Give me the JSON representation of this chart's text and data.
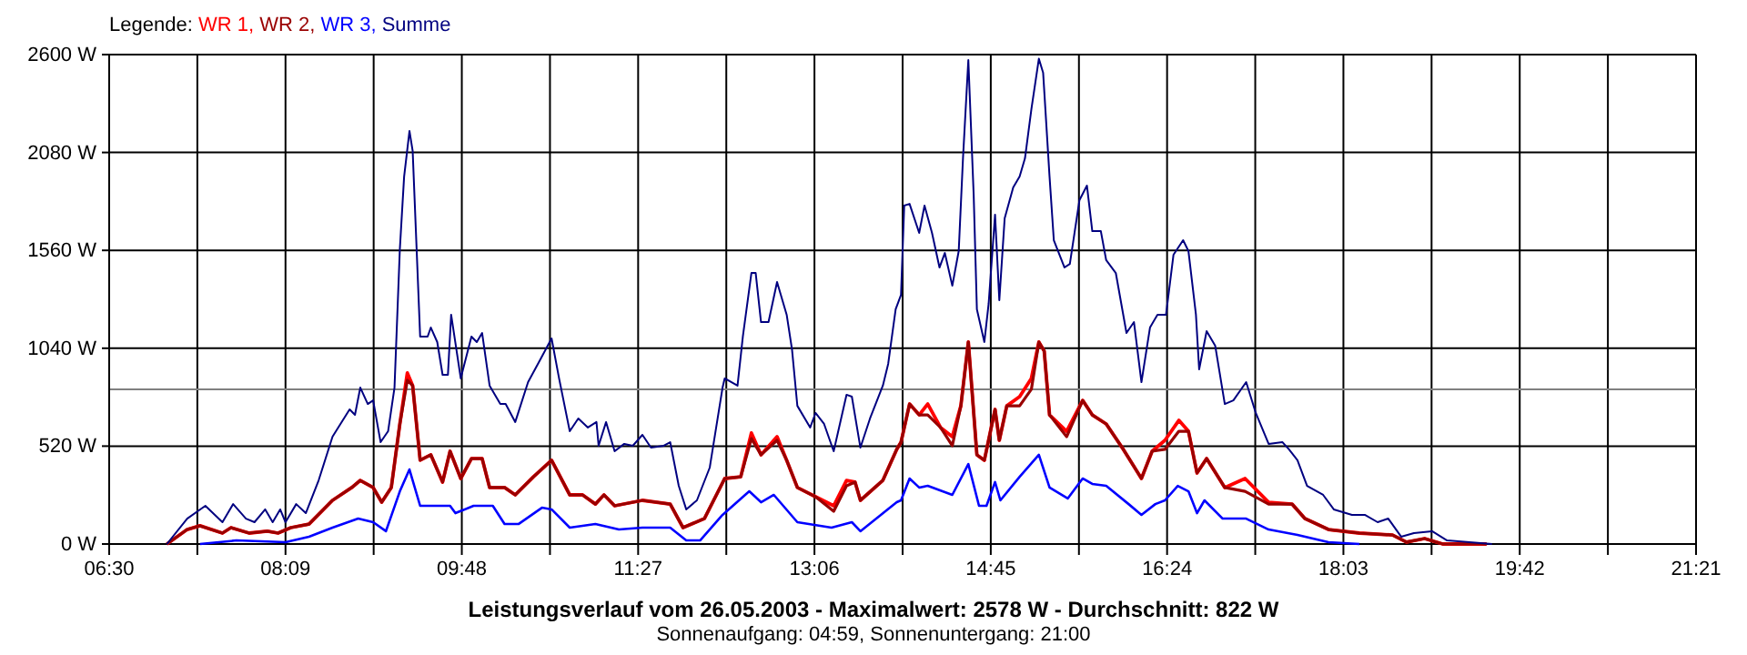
{
  "chart_data": {
    "type": "line",
    "title": "Leistungsverlauf vom 26.05.2003 - Maximalwert: 2578 W - Durchschnitt: 822 W",
    "subtitle": "Sonnenaufgang: 04:59, Sonnenuntergang: 21:00",
    "legend_title": "Legende:",
    "legend": "top left",
    "grid": true,
    "xlim": [
      6.5,
      21.35
    ],
    "xticks": [
      {
        "value": 6.5,
        "label": "06:30"
      },
      {
        "value": 7.325,
        "label": null
      },
      {
        "value": 8.15,
        "label": "08:09"
      },
      {
        "value": 8.975,
        "label": null
      },
      {
        "value": 9.8,
        "label": "09:48"
      },
      {
        "value": 10.625,
        "label": null
      },
      {
        "value": 11.45,
        "label": "11:27"
      },
      {
        "value": 12.275,
        "label": null
      },
      {
        "value": 13.1,
        "label": "13:06"
      },
      {
        "value": 13.925,
        "label": null
      },
      {
        "value": 14.75,
        "label": "14:45"
      },
      {
        "value": 15.575,
        "label": null
      },
      {
        "value": 16.4,
        "label": "16:24"
      },
      {
        "value": 17.225,
        "label": null
      },
      {
        "value": 18.05,
        "label": "18:03"
      },
      {
        "value": 18.875,
        "label": null
      },
      {
        "value": 19.7,
        "label": "19:42"
      },
      {
        "value": 20.525,
        "label": null
      },
      {
        "value": 21.35,
        "label": "21:21"
      }
    ],
    "ylim": [
      0,
      2600
    ],
    "yticks": [
      {
        "value": 0,
        "label": "0 W"
      },
      {
        "value": 520,
        "label": "520 W"
      },
      {
        "value": 1040,
        "label": "1040 W"
      },
      {
        "value": 1560,
        "label": "1560 W"
      },
      {
        "value": 2080,
        "label": "2080 W"
      },
      {
        "value": 2600,
        "label": "2600 W"
      }
    ],
    "ref_lines": [
      {
        "axis": "y",
        "value": 822,
        "color": "#808080"
      }
    ],
    "series": [
      {
        "name": "WR 1,",
        "color": "#ff0000",
        "x": [
          7.04,
          7.23,
          7.35,
          7.56,
          7.64,
          7.81,
          7.98,
          8.08,
          8.2,
          8.37,
          8.59,
          8.77,
          8.85,
          8.97,
          9.05,
          9.14,
          9.22,
          9.29,
          9.34,
          9.41,
          9.51,
          9.62,
          9.69,
          9.79,
          9.89,
          9.99,
          10.06,
          10.2,
          10.3,
          10.47,
          10.64,
          10.81,
          10.93,
          11.05,
          11.13,
          11.23,
          11.49,
          11.75,
          11.87,
          12.07,
          12.26,
          12.41,
          12.51,
          12.6,
          12.75,
          12.84,
          12.94,
          13.11,
          13.28,
          13.4,
          13.48,
          13.53,
          13.74,
          13.87,
          13.91,
          13.99,
          14.08,
          14.16,
          14.28,
          14.39,
          14.47,
          14.54,
          14.62,
          14.69,
          14.79,
          14.83,
          14.9,
          15.02,
          15.13,
          15.2,
          15.25,
          15.3,
          15.46,
          15.61,
          15.7,
          15.83,
          15.99,
          16.16,
          16.26,
          16.38,
          16.51,
          16.6,
          16.68,
          16.77,
          16.94,
          17.13,
          17.35,
          17.57,
          17.69,
          17.91,
          18.2,
          18.51,
          18.64,
          18.81,
          18.98,
          19.39
        ],
        "values": [
          0,
          77,
          97,
          58,
          87,
          58,
          68,
          58,
          87,
          106,
          232,
          300,
          338,
          300,
          222,
          300,
          638,
          909,
          841,
          445,
          474,
          329,
          493,
          348,
          454,
          454,
          300,
          300,
          261,
          357,
          445,
          261,
          261,
          212,
          261,
          203,
          232,
          212,
          87,
          135,
          348,
          357,
          590,
          474,
          570,
          445,
          300,
          251,
          203,
          338,
          329,
          232,
          338,
          503,
          541,
          744,
          686,
          744,
          619,
          570,
          734,
          1073,
          474,
          445,
          715,
          551,
          734,
          783,
          880,
          1073,
          1025,
          686,
          599,
          763,
          686,
          638,
          503,
          348,
          493,
          551,
          657,
          599,
          377,
          454,
          300,
          348,
          222,
          212,
          135,
          77,
          58,
          48,
          10,
          29,
          0,
          0
        ]
      },
      {
        "name": "WR 2,",
        "color": "#990000",
        "x": [
          7.04,
          7.23,
          7.35,
          7.56,
          7.64,
          7.81,
          7.98,
          8.08,
          8.2,
          8.37,
          8.59,
          8.77,
          8.85,
          8.97,
          9.05,
          9.14,
          9.22,
          9.29,
          9.34,
          9.41,
          9.51,
          9.62,
          9.69,
          9.79,
          9.89,
          9.99,
          10.06,
          10.2,
          10.3,
          10.47,
          10.64,
          10.81,
          10.93,
          11.05,
          11.13,
          11.23,
          11.49,
          11.75,
          11.87,
          12.07,
          12.26,
          12.41,
          12.51,
          12.6,
          12.75,
          12.84,
          12.94,
          13.11,
          13.28,
          13.4,
          13.48,
          13.53,
          13.74,
          13.87,
          13.91,
          13.99,
          14.08,
          14.16,
          14.28,
          14.39,
          14.47,
          14.54,
          14.62,
          14.69,
          14.79,
          14.83,
          14.9,
          15.02,
          15.13,
          15.2,
          15.25,
          15.3,
          15.46,
          15.61,
          15.7,
          15.83,
          15.99,
          16.16,
          16.26,
          16.38,
          16.51,
          16.6,
          16.68,
          16.77,
          16.94,
          17.13,
          17.35,
          17.57,
          17.69,
          17.91,
          18.2,
          18.51,
          18.64,
          18.81,
          18.98,
          19.39
        ],
        "values": [
          0,
          77,
          97,
          58,
          87,
          58,
          68,
          58,
          87,
          106,
          232,
          300,
          338,
          300,
          222,
          300,
          638,
          870,
          841,
          445,
          474,
          329,
          493,
          348,
          454,
          454,
          300,
          300,
          261,
          357,
          445,
          261,
          261,
          212,
          261,
          203,
          232,
          212,
          87,
          135,
          348,
          357,
          560,
          474,
          551,
          445,
          300,
          251,
          174,
          309,
          329,
          232,
          338,
          503,
          541,
          744,
          686,
          686,
          619,
          522,
          734,
          1073,
          474,
          445,
          715,
          551,
          734,
          734,
          822,
          1073,
          1025,
          686,
          570,
          763,
          686,
          638,
          503,
          348,
          493,
          503,
          599,
          599,
          377,
          454,
          300,
          280,
          212,
          212,
          135,
          77,
          58,
          48,
          10,
          29,
          0,
          0
        ]
      },
      {
        "name": "WR 3,",
        "color": "#0000ff",
        "x": [
          7.35,
          7.69,
          8.15,
          8.37,
          8.59,
          8.83,
          8.97,
          9.09,
          9.22,
          9.31,
          9.41,
          9.69,
          9.74,
          9.91,
          10.09,
          10.2,
          10.33,
          10.55,
          10.64,
          10.81,
          11.05,
          11.27,
          11.49,
          11.75,
          11.9,
          12.03,
          12.24,
          12.49,
          12.6,
          12.72,
          12.94,
          13.26,
          13.45,
          13.53,
          13.87,
          13.91,
          13.99,
          14.08,
          14.16,
          14.39,
          14.54,
          14.64,
          14.71,
          14.79,
          14.84,
          15.02,
          15.2,
          15.3,
          15.47,
          15.61,
          15.7,
          15.83,
          16.04,
          16.16,
          16.29,
          16.38,
          16.5,
          16.6,
          16.68,
          16.75,
          16.92,
          17.14,
          17.35,
          17.62,
          17.91,
          18.2
        ],
        "values": [
          0,
          19,
          10,
          39,
          87,
          135,
          116,
          68,
          280,
          396,
          203,
          203,
          164,
          203,
          203,
          106,
          106,
          193,
          184,
          87,
          106,
          77,
          87,
          87,
          19,
          19,
          155,
          280,
          222,
          261,
          116,
          87,
          116,
          68,
          222,
          232,
          348,
          300,
          309,
          261,
          425,
          203,
          203,
          329,
          232,
          357,
          474,
          300,
          242,
          348,
          319,
          309,
          212,
          155,
          212,
          232,
          309,
          280,
          164,
          232,
          135,
          135,
          77,
          48,
          10,
          0
        ]
      },
      {
        "name": "Summe",
        "color": "#000080",
        "x": [
          7.04,
          7.23,
          7.4,
          7.56,
          7.66,
          7.78,
          7.86,
          7.96,
          8.03,
          8.1,
          8.15,
          8.25,
          8.34,
          8.46,
          8.59,
          8.75,
          8.8,
          8.85,
          8.92,
          8.97,
          9.04,
          9.11,
          9.17,
          9.22,
          9.26,
          9.31,
          9.34,
          9.41,
          9.48,
          9.51,
          9.57,
          9.62,
          9.67,
          9.7,
          9.79,
          9.89,
          9.94,
          9.99,
          10.06,
          10.16,
          10.21,
          10.3,
          10.42,
          10.54,
          10.64,
          10.71,
          10.81,
          10.89,
          10.98,
          11.06,
          11.08,
          11.15,
          11.23,
          11.32,
          11.4,
          11.49,
          11.57,
          11.69,
          11.75,
          11.83,
          11.9,
          12.0,
          12.12,
          12.24,
          12.26,
          12.38,
          12.43,
          12.51,
          12.55,
          12.6,
          12.67,
          12.75,
          12.84,
          12.89,
          12.94,
          13.06,
          13.11,
          13.19,
          13.28,
          13.4,
          13.45,
          13.53,
          13.62,
          13.74,
          13.79,
          13.86,
          13.91,
          13.94,
          13.99,
          14.08,
          14.13,
          14.2,
          14.27,
          14.32,
          14.39,
          14.45,
          14.49,
          14.54,
          14.59,
          14.62,
          14.69,
          14.73,
          14.79,
          14.83,
          14.88,
          14.96,
          15.02,
          15.07,
          15.13,
          15.2,
          15.24,
          15.3,
          15.34,
          15.44,
          15.49,
          15.58,
          15.65,
          15.7,
          15.78,
          15.83,
          15.92,
          16.02,
          16.09,
          16.16,
          16.24,
          16.31,
          16.39,
          16.46,
          16.55,
          16.6,
          16.67,
          16.7,
          16.77,
          16.85,
          16.94,
          17.02,
          17.14,
          17.23,
          17.35,
          17.48,
          17.54,
          17.62,
          17.71,
          17.86,
          17.96,
          18.13,
          18.25,
          18.37,
          18.47,
          18.59,
          18.71,
          18.88,
          19.02,
          19.44
        ],
        "values": [
          0,
          135,
          203,
          116,
          212,
          135,
          116,
          184,
          116,
          184,
          116,
          212,
          164,
          338,
          570,
          715,
          686,
          831,
          744,
          763,
          541,
          599,
          831,
          1566,
          1952,
          2194,
          2088,
          1102,
          1102,
          1150,
          1073,
          899,
          899,
          1218,
          880,
          1102,
          1073,
          1121,
          841,
          744,
          744,
          648,
          860,
          986,
          1092,
          880,
          599,
          667,
          619,
          648,
          522,
          648,
          493,
          532,
          522,
          580,
          512,
          522,
          541,
          309,
          184,
          232,
          406,
          831,
          880,
          841,
          1102,
          1440,
          1440,
          1179,
          1179,
          1392,
          1218,
          1034,
          734,
          619,
          696,
          638,
          493,
          793,
          783,
          512,
          667,
          841,
          957,
          1247,
          1324,
          1798,
          1807,
          1653,
          1798,
          1653,
          1469,
          1546,
          1372,
          1556,
          2049,
          2571,
          1856,
          1247,
          1073,
          1276,
          1749,
          1295,
          1730,
          1894,
          1952,
          2049,
          2310,
          2578,
          2503,
          1952,
          1614,
          1469,
          1488,
          1827,
          1904,
          1662,
          1662,
          1508,
          1440,
          1121,
          1179,
          860,
          1150,
          1218,
          1218,
          1537,
          1614,
          1556,
          1218,
          928,
          1131,
          1054,
          744,
          763,
          860,
          696,
          532,
          541,
          503,
          445,
          309,
          261,
          184,
          155,
          155,
          116,
          135,
          39,
          58,
          68,
          19,
          0
        ]
      }
    ]
  }
}
